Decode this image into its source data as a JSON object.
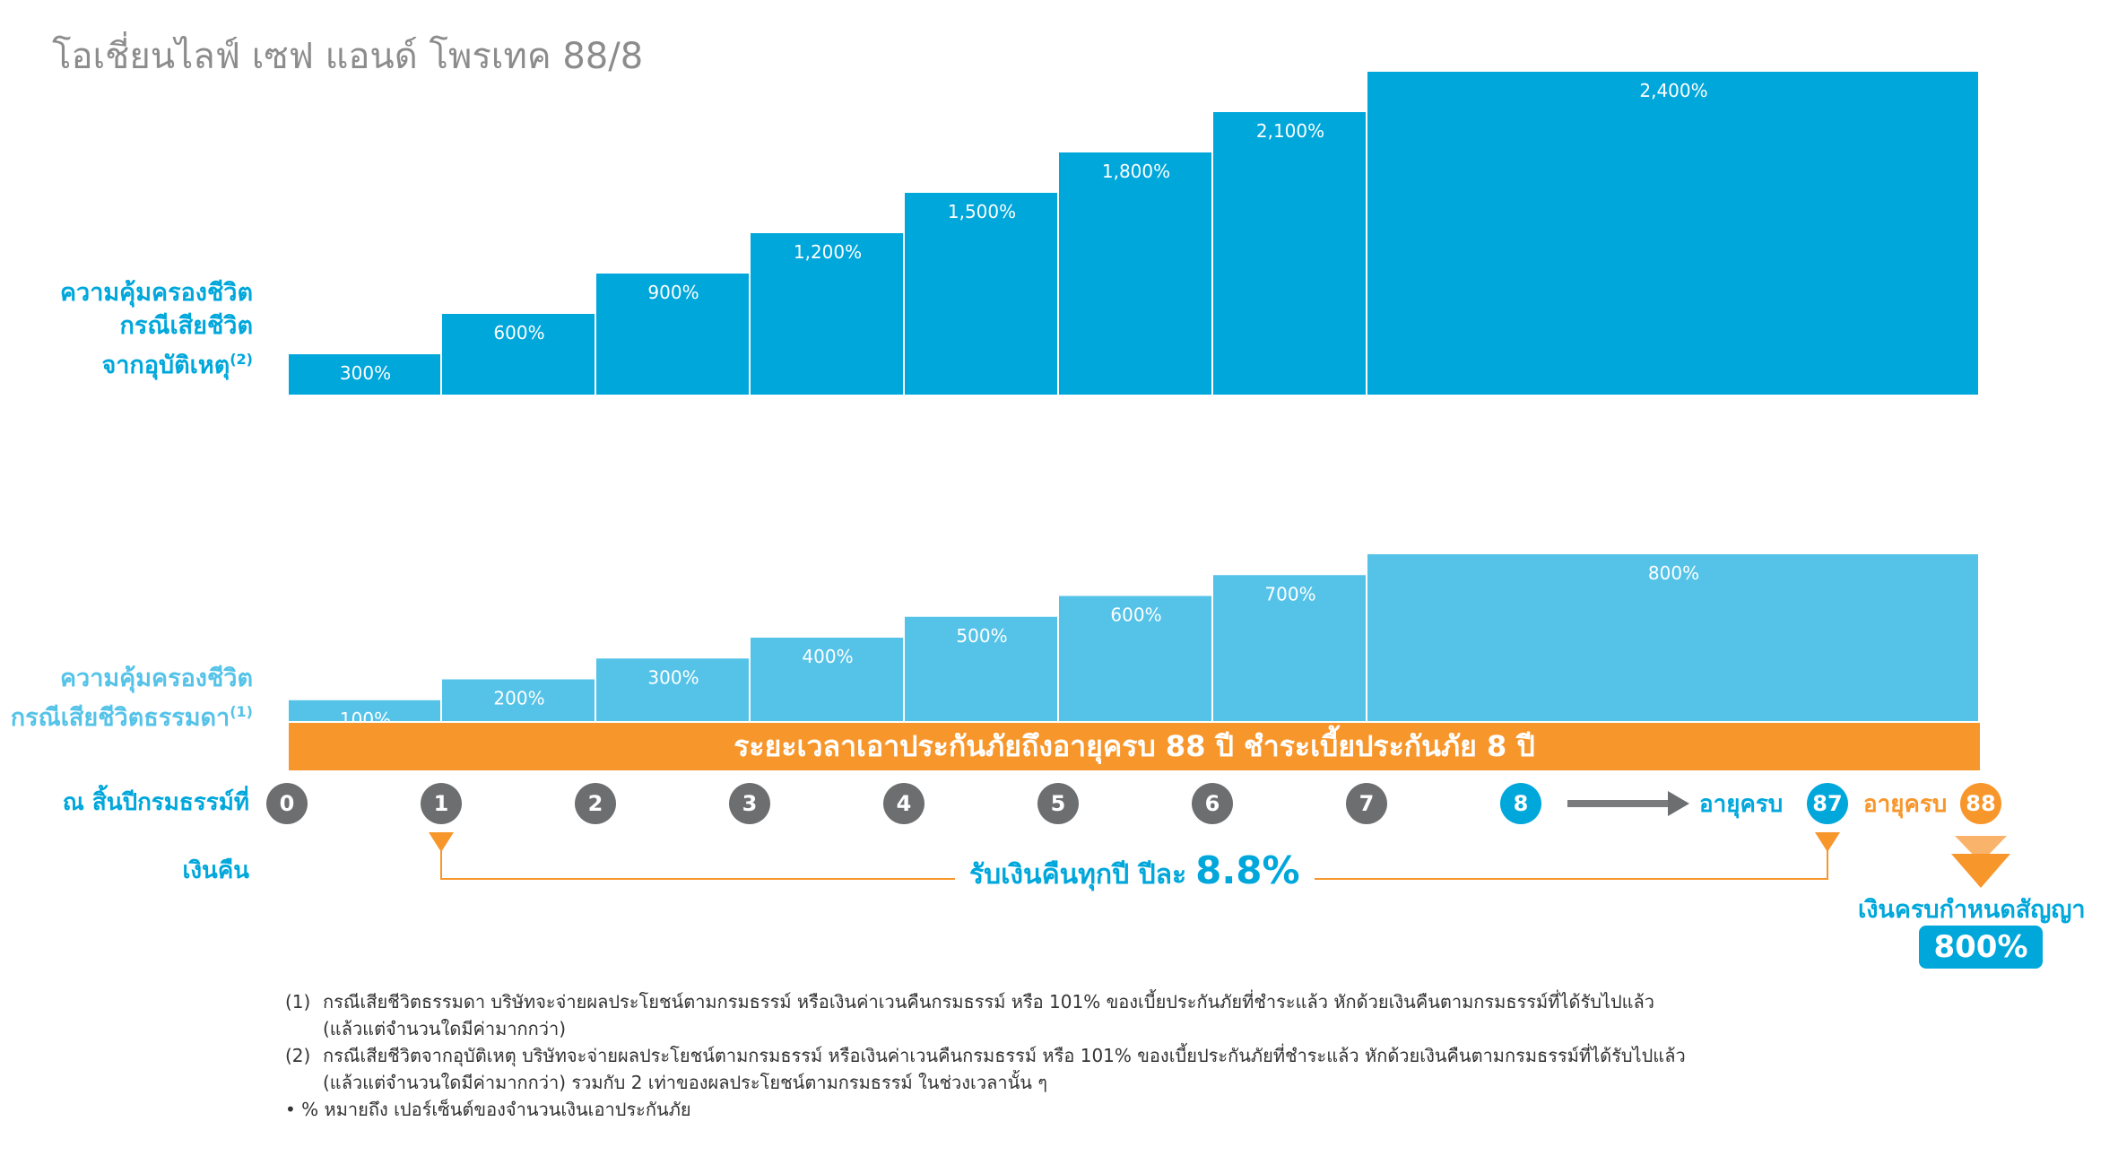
{
  "title": "โอเชี่ยนไลฟ์ เซฟ แอนด์ โพรเทค 88/8",
  "accident_label": {
    "lines": [
      "ความคุ้มครองชีวิต",
      "กรณีเสียชีวิต",
      "จากอุบัติเหตุ"
    ],
    "note": "(2)"
  },
  "natural_label": {
    "lines": [
      "ความคุ้มครองชีวิต",
      "กรณีเสียชีวิตธรรมดา"
    ],
    "note": "(1)"
  },
  "period_bar": "ระยะเวลาเอาประกันภัยถึงอายุครบ 88 ปี ชำระเบี้ยประกันภัย 8 ปี",
  "year_end_label": "ณ สิ้นปีกรมธรรม์ที่",
  "year_markers": [
    "0",
    "1",
    "2",
    "3",
    "4",
    "5",
    "6",
    "7",
    "8",
    "87",
    "88"
  ],
  "age_label": "อายุครบ",
  "cashback_label": "เงินคืน",
  "cashback_text": "รับเงินคืนทุกปี ปีละ",
  "cashback_rate": "8.8%",
  "maturity_label": "เงินครบกำหนดสัญญา",
  "maturity_value": "800%",
  "footnotes": {
    "fn1_num": "(1)",
    "fn1_line1": "กรณีเสียชีวิตธรรมดา บริษัทจะจ่ายผลประโยชน์ตามกรมธรรม์ หรือเงินค่าเวนคืนกรมธรรม์ หรือ 101% ของเบี้ยประกันภัยที่ชำระแล้ว หักด้วยเงินคืนตามกรมธรรม์ที่ได้รับไปแล้ว",
    "fn1_line2": "(แล้วแต่จำนวนใดมีค่ามากกว่า)",
    "fn2_num": "(2)",
    "fn2_line1": "กรณีเสียชีวิตจากอุบัติเหตุ บริษัทจะจ่ายผลประโยชน์ตามกรมธรรม์ หรือเงินค่าเวนคืนกรมธรรม์ หรือ 101% ของเบี้ยประกันภัยที่ชำระแล้ว หักด้วยเงินคืนตามกรมธรรม์ที่ได้รับไปแล้ว",
    "fn2_line2": "(แล้วแต่จำนวนใดมีค่ามากกว่า) รวมกับ 2 เท่าของผลประโยชน์ตามกรมธรรม์ ในช่วงเวลานั้น ๆ",
    "note": "• % หมายถึง เปอร์เซ็นต์ของจำนวนเงินเอาประกันภัย"
  },
  "colors": {
    "accident_bar": "#00a7db",
    "natural_bar": "#55c3e8",
    "period_bar": "#f7962b",
    "year_marker_grey": "#6d6e70",
    "title_grey": "#8c8c8c"
  },
  "chart_data": [
    {
      "type": "bar",
      "title": "",
      "categories": [
        "1",
        "2",
        "3",
        "4",
        "5",
        "6",
        "7",
        "8-88"
      ],
      "values": [
        300,
        600,
        900,
        1200,
        1500,
        1800,
        2100,
        2400
      ],
      "labels": [
        "300%",
        "600%",
        "900%",
        "1,200%",
        "1,500%",
        "1,800%",
        "2,100%",
        "2,400%"
      ],
      "ylim": [
        0,
        2400
      ],
      "grid": false
    },
    {
      "type": "bar",
      "title": "",
      "categories": [
        "1",
        "2",
        "3",
        "4",
        "5",
        "6",
        "7",
        "8-88"
      ],
      "values": [
        100,
        200,
        300,
        400,
        500,
        600,
        700,
        800
      ],
      "labels": [
        "100%",
        "200%",
        "300%",
        "400%",
        "500%",
        "600%",
        "700%",
        "800%"
      ],
      "ylim": [
        0,
        800
      ],
      "grid": false
    }
  ]
}
